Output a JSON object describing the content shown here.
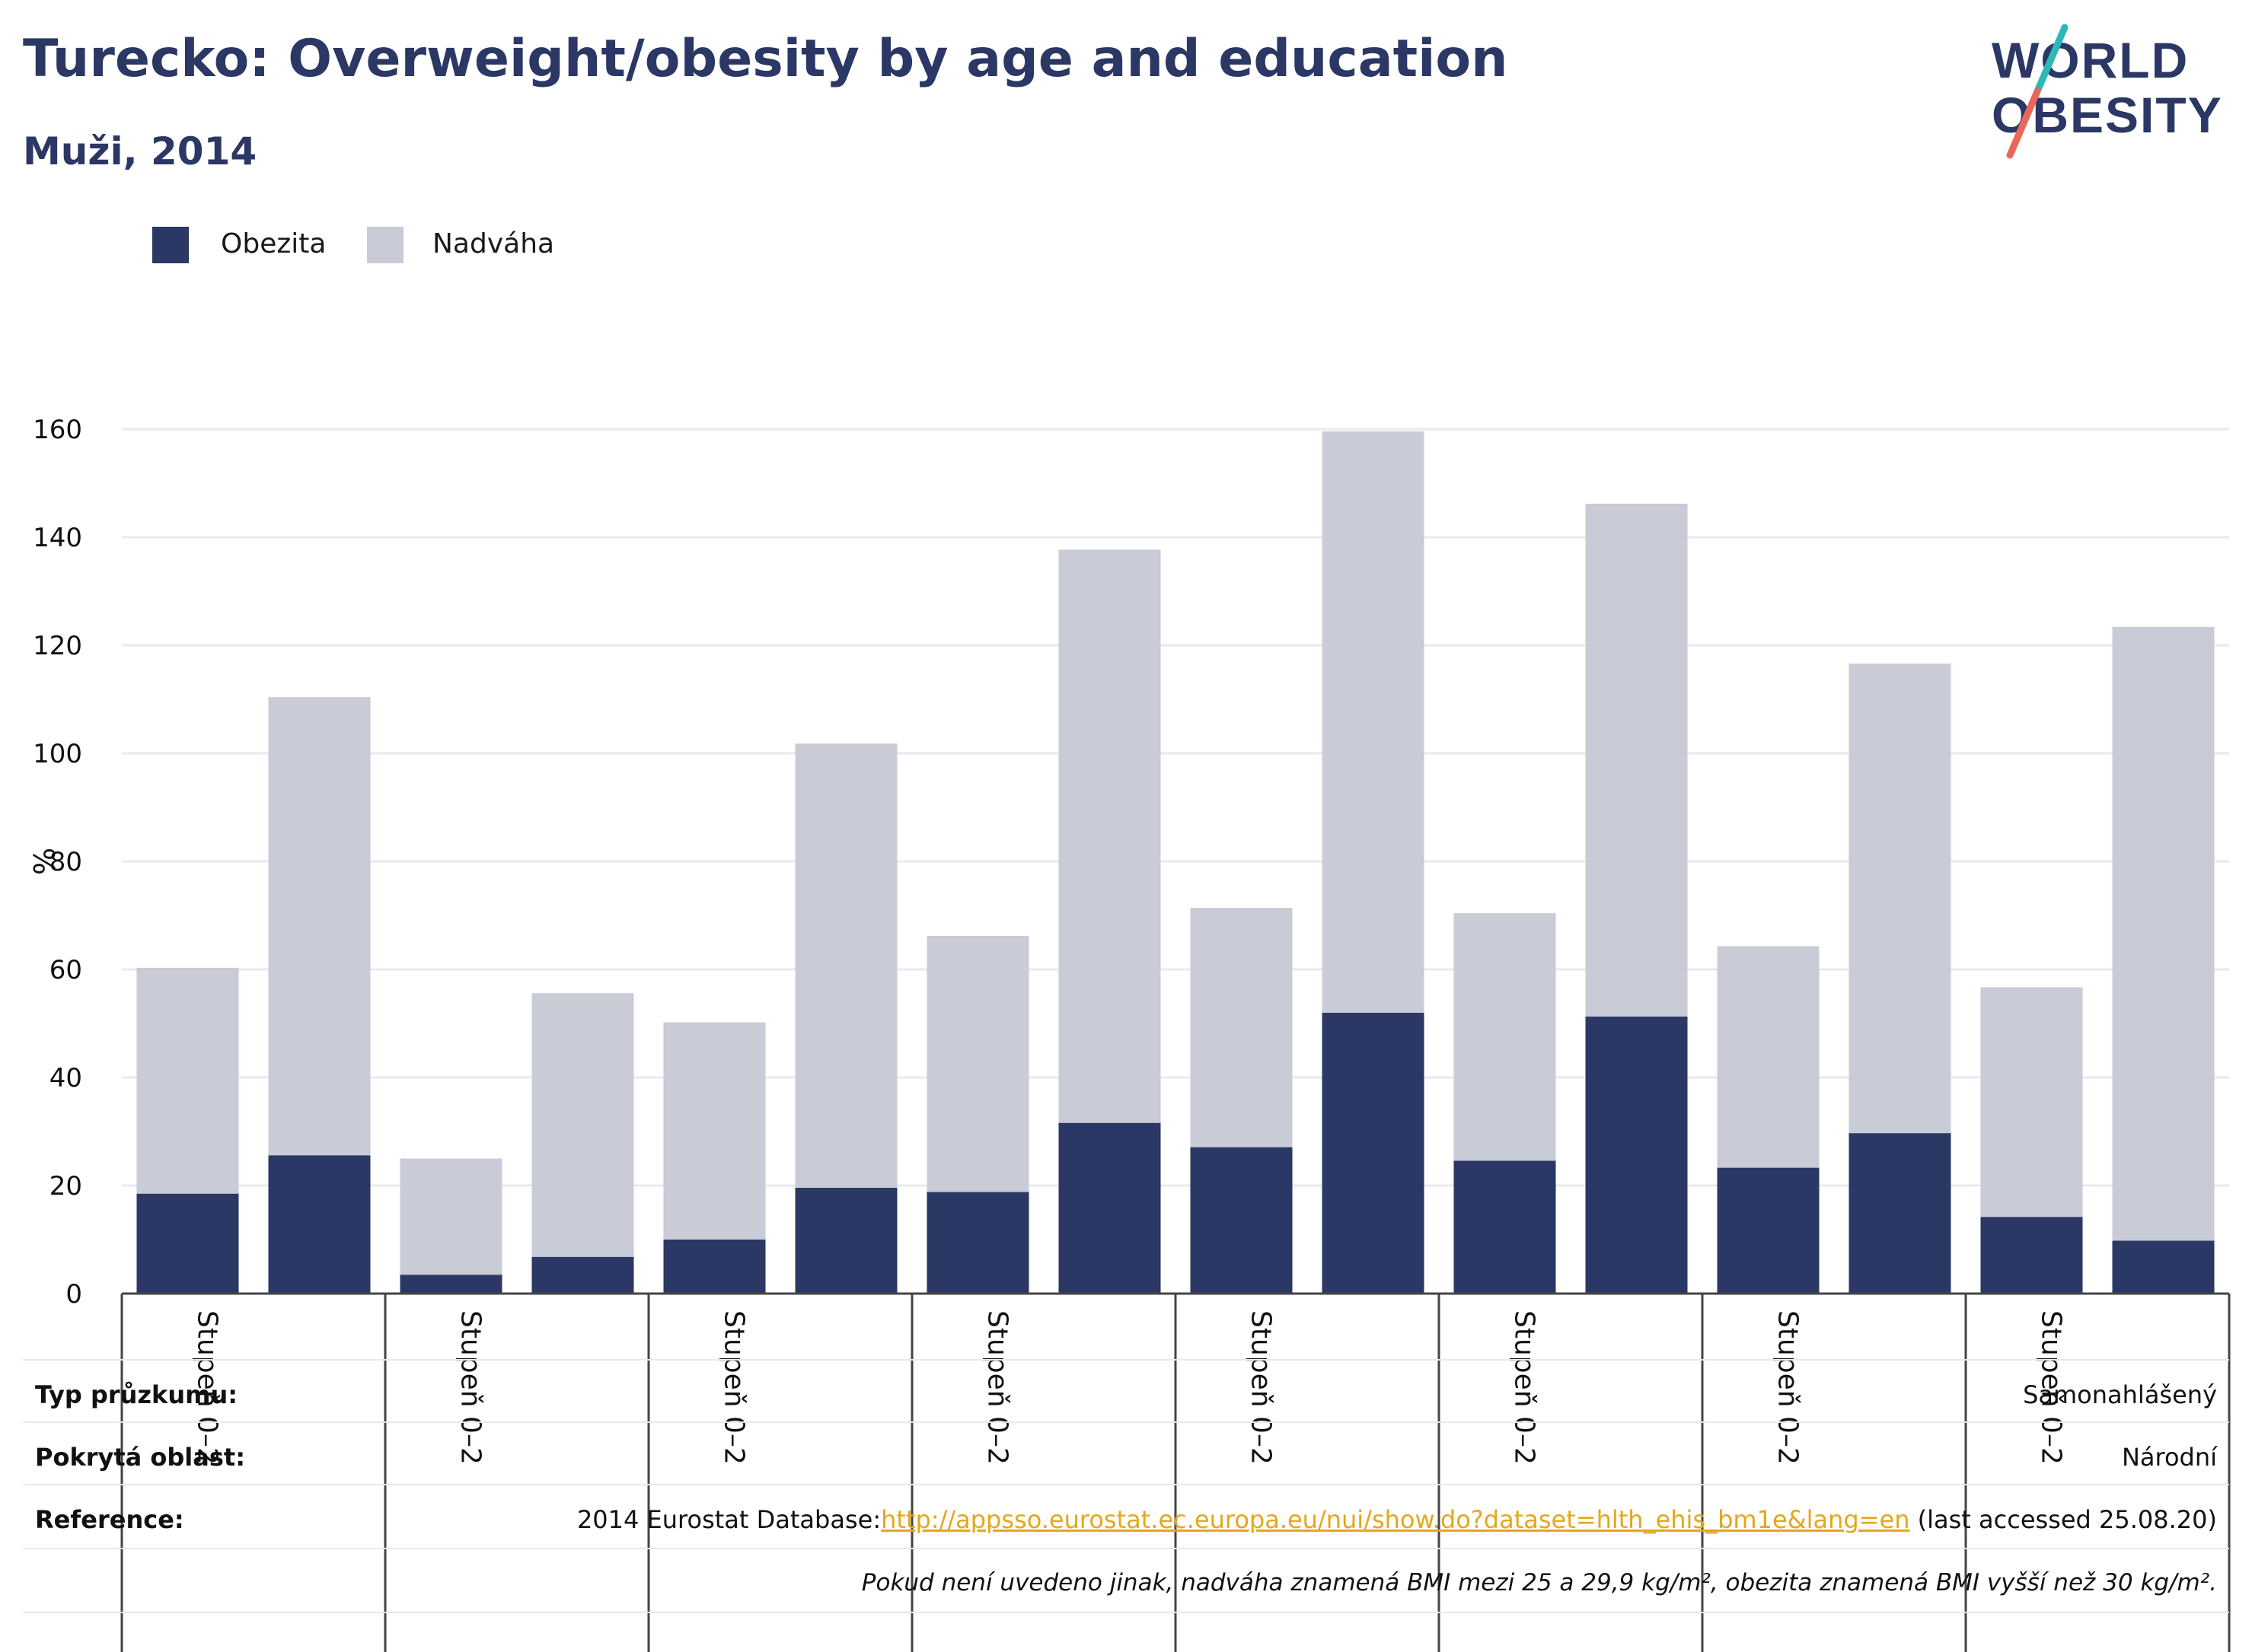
{
  "header": {
    "title": "Turecko: Overweight/obesity by age and education",
    "subtitle": "Muži, 2014"
  },
  "logo": {
    "text_line1": "WORLD",
    "text_line2": "OBESITY",
    "colors": {
      "text": "#2b3764",
      "slash_top": "#2fb7b7",
      "slash_bottom": "#e8675a"
    }
  },
  "legend": {
    "items": [
      {
        "label": "Obezita",
        "color": "#2b3764"
      },
      {
        "label": "Nadváha",
        "color": "#c9cbd7"
      }
    ]
  },
  "chart_data": {
    "type": "bar",
    "stacked": true,
    "title": "",
    "xlabel": "",
    "ylabel": "%",
    "ylim": [
      0,
      160
    ],
    "yticks": [
      0,
      20,
      40,
      60,
      80,
      100,
      120,
      140,
      160
    ],
    "grid": true,
    "legend_position": "top-left",
    "group_labels": [
      "Stupeň 0–2",
      "Stupeň 0–2",
      "Stupeň 0–2",
      "Stupeň 0–2",
      "Stupeň 0–2",
      "Stupeň 0–2",
      "Stupeň 0–2",
      "Stupeň 0–2"
    ],
    "bars_per_group": 2,
    "series": [
      {
        "name": "Obezita",
        "color": "#2b3764",
        "values": [
          18.5,
          25.6,
          3.5,
          6.8,
          10.0,
          19.6,
          18.8,
          31.6,
          27.1,
          52.0,
          24.6,
          51.3,
          23.3,
          29.7,
          14.2,
          9.8
        ]
      },
      {
        "name": "Nadváha",
        "color": "#c9cbd7",
        "values": [
          41.8,
          84.8,
          21.5,
          48.8,
          40.2,
          82.2,
          47.4,
          106.1,
          44.3,
          107.6,
          45.8,
          94.9,
          41.0,
          86.9,
          42.5,
          113.6
        ]
      }
    ]
  },
  "info": {
    "rows": [
      {
        "label": "Typ průzkumu:",
        "value": "Samonahlášený"
      },
      {
        "label": "Pokrytá oblast:",
        "value": "Národní"
      },
      {
        "label": "Reference:",
        "value_prefix": "2014 Eurostat Database:",
        "link": "http://appsso.eurostat.ec.europa.eu/nui/show.do?dataset=hlth_ehis_bm1e&lang=en",
        "value_suffix": "(last accessed 25.08.20)"
      }
    ],
    "note": "Pokud není uvedeno jinak, nadváha znamená BMI mezi 25 a 29,9 kg/m², obezita znamená BMI vyšší než 30 kg/m²."
  }
}
